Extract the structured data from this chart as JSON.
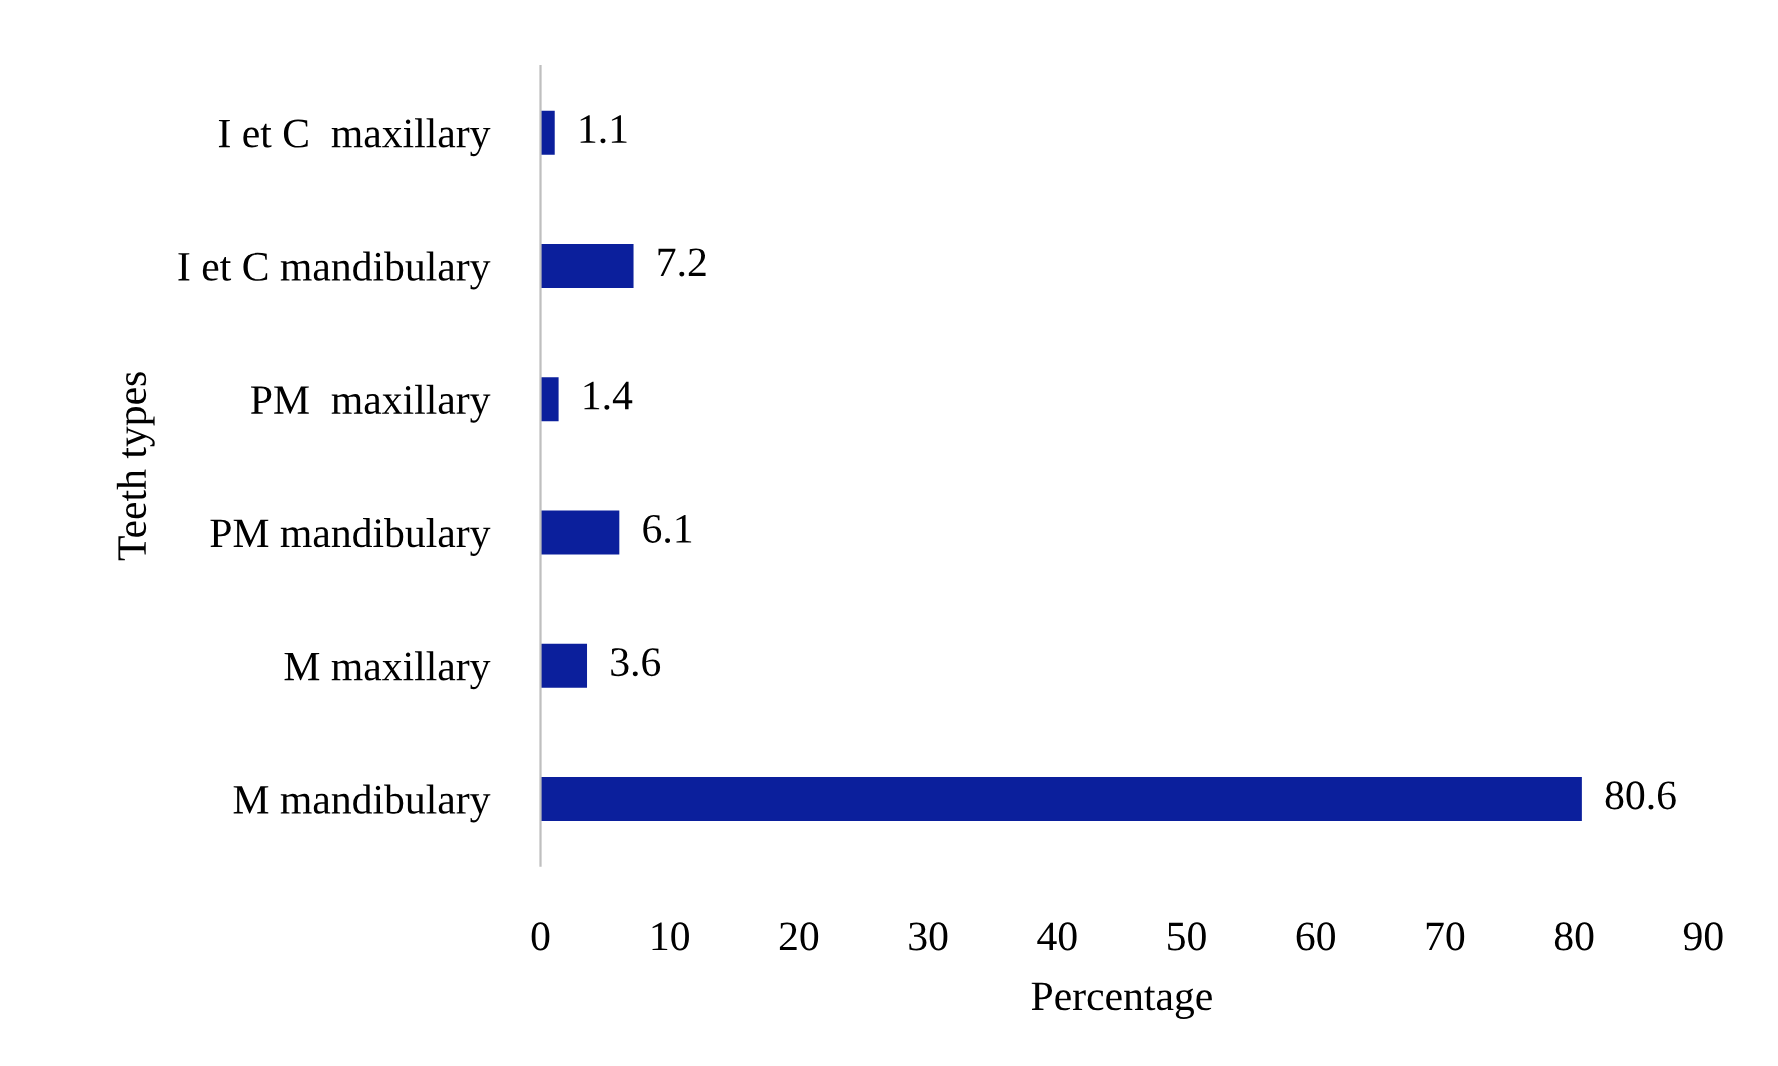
{
  "chart_data": {
    "type": "bar",
    "orientation": "horizontal",
    "ylabel": "Teeth types",
    "xlabel": "Percentage",
    "categories": [
      "I et C  maxillary",
      "I et C mandibulary",
      "PM  maxillary",
      "PM mandibulary",
      "M maxillary",
      "M mandibulary"
    ],
    "values": [
      1.1,
      7.2,
      1.4,
      6.1,
      3.6,
      80.6
    ],
    "color": "#0b1f9c",
    "xlim": [
      0,
      90
    ],
    "xticks": [
      0,
      10,
      20,
      30,
      40,
      50,
      60,
      70,
      80,
      90
    ],
    "data_labels": true,
    "grid": false,
    "legend": false
  }
}
